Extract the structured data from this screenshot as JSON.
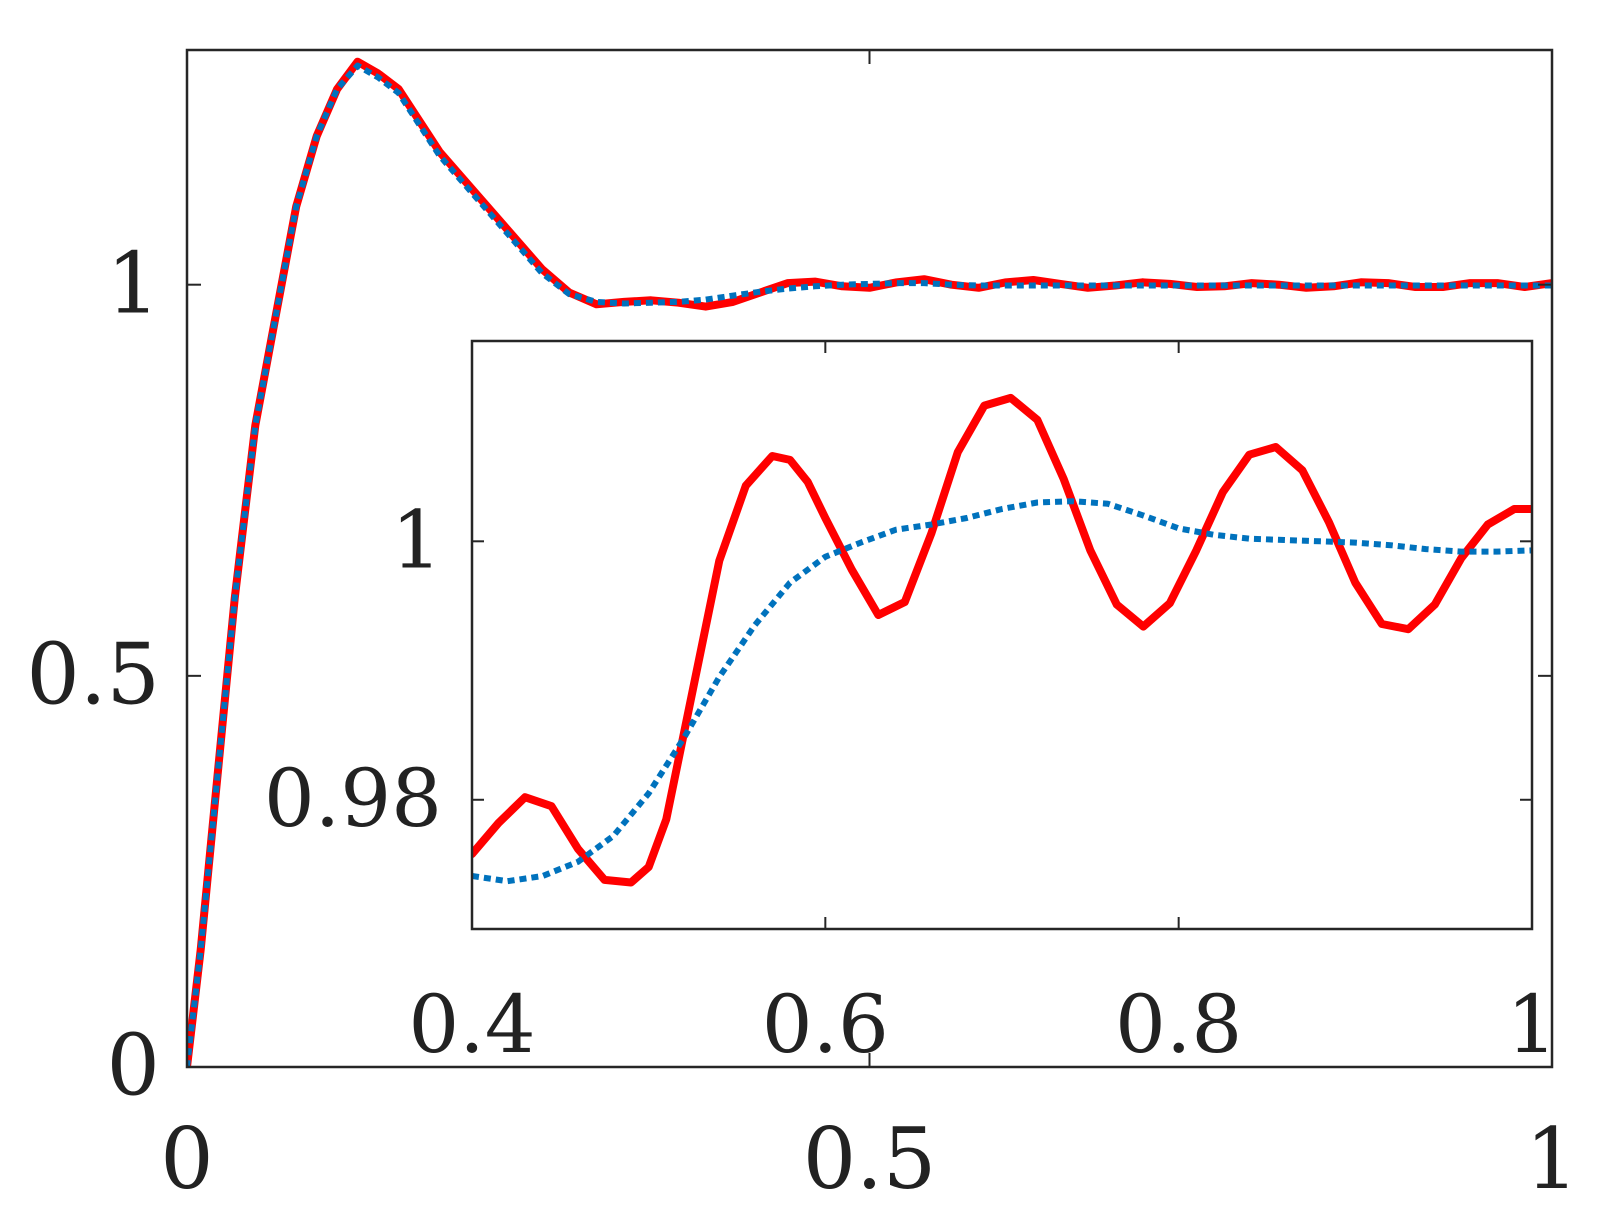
{
  "colors": {
    "series_red": "#ff0000",
    "series_blue": "#0072bd",
    "axes": "#262626",
    "background": "#ffffff"
  },
  "chart_data": [
    {
      "type": "line",
      "role": "main",
      "xlim": [
        0,
        1
      ],
      "ylim": [
        0,
        1.3
      ],
      "grid": false,
      "legend": "none",
      "xticks": [
        0,
        0.5,
        1
      ],
      "xtick_labels": [
        "0",
        "0.5",
        "1"
      ],
      "yticks": [
        0,
        0.5,
        1
      ],
      "ytick_labels": [
        "0",
        "0.5",
        "1"
      ],
      "series": [
        {
          "color": "#ff0000",
          "style": "solid",
          "x": [
            0,
            0.01,
            0.02,
            0.035,
            0.05,
            0.065,
            0.08,
            0.095,
            0.11,
            0.125,
            0.14,
            0.155,
            0.17,
            0.185,
            0.2,
            0.22,
            0.24,
            0.26,
            0.28,
            0.3,
            0.32,
            0.34,
            0.36,
            0.38,
            0.4,
            0.42,
            0.44,
            0.46,
            0.48,
            0.5,
            0.52,
            0.54,
            0.56,
            0.58,
            0.6,
            0.62,
            0.64,
            0.66,
            0.68,
            0.7,
            0.72,
            0.74,
            0.76,
            0.78,
            0.8,
            0.82,
            0.84,
            0.86,
            0.88,
            0.9,
            0.92,
            0.94,
            0.96,
            0.98,
            1.0
          ],
          "y": [
            0,
            0.15,
            0.33,
            0.6,
            0.82,
            0.96,
            1.1,
            1.19,
            1.25,
            1.285,
            1.27,
            1.25,
            1.21,
            1.17,
            1.14,
            1.1,
            1.06,
            1.02,
            0.99,
            0.975,
            0.978,
            0.98,
            0.977,
            0.972,
            0.978,
            0.99,
            1.002,
            1.004,
            0.998,
            0.996,
            1.003,
            1.007,
            1.0,
            0.996,
            1.003,
            1.006,
            1.001,
            0.996,
            0.999,
            1.003,
            1.001,
            0.997,
            0.998,
            1.002,
            1.0,
            0.996,
            0.998,
            1.003,
            1.002,
            0.997,
            0.997,
            1.002,
            1.002,
            0.997,
            1.002
          ]
        },
        {
          "color": "#0072bd",
          "style": "dotted",
          "x": [
            0,
            0.01,
            0.02,
            0.035,
            0.05,
            0.065,
            0.08,
            0.095,
            0.11,
            0.125,
            0.14,
            0.155,
            0.17,
            0.185,
            0.2,
            0.22,
            0.24,
            0.26,
            0.28,
            0.3,
            0.32,
            0.34,
            0.36,
            0.38,
            0.4,
            0.42,
            0.44,
            0.46,
            0.48,
            0.5,
            0.52,
            0.54,
            0.56,
            0.58,
            0.6,
            0.62,
            0.64,
            0.66,
            0.68,
            0.7,
            0.72,
            0.74,
            0.76,
            0.78,
            0.8,
            0.82,
            0.84,
            0.86,
            0.88,
            0.9,
            0.92,
            0.94,
            0.96,
            0.98,
            1.0
          ],
          "y": [
            0,
            0.15,
            0.33,
            0.6,
            0.82,
            0.96,
            1.1,
            1.19,
            1.25,
            1.28,
            1.265,
            1.245,
            1.205,
            1.165,
            1.135,
            1.095,
            1.055,
            1.015,
            0.988,
            0.978,
            0.976,
            0.977,
            0.978,
            0.981,
            0.986,
            0.991,
            0.995,
            0.998,
            1.0,
            1.001,
            1.002,
            1.002,
            1.0,
            0.999,
            0.999,
            0.999,
            0.999,
            0.999,
            0.999,
            0.999,
            0.999,
            0.999,
            0.999,
            0.999,
            0.999,
            0.999,
            0.999,
            0.999,
            0.999,
            0.999,
            0.999,
            0.999,
            0.999,
            0.999,
            0.999
          ]
        }
      ]
    },
    {
      "type": "line",
      "role": "inset",
      "xlim": [
        0.4,
        1
      ],
      "ylim": [
        0.97,
        1.0155
      ],
      "grid": false,
      "legend": "none",
      "xticks": [
        0.4,
        0.6,
        0.8,
        1
      ],
      "xtick_labels": [
        "0.4",
        "0.6",
        "0.8",
        "1"
      ],
      "yticks": [
        0.98,
        1
      ],
      "ytick_labels": [
        "0.98",
        "1"
      ],
      "series": [
        {
          "color": "#ff0000",
          "style": "solid",
          "x": [
            0.4,
            0.415,
            0.43,
            0.445,
            0.46,
            0.475,
            0.49,
            0.5,
            0.51,
            0.525,
            0.54,
            0.555,
            0.57,
            0.58,
            0.59,
            0.6,
            0.615,
            0.63,
            0.645,
            0.66,
            0.675,
            0.69,
            0.705,
            0.72,
            0.735,
            0.75,
            0.765,
            0.78,
            0.795,
            0.81,
            0.825,
            0.84,
            0.855,
            0.87,
            0.885,
            0.9,
            0.915,
            0.93,
            0.945,
            0.96,
            0.975,
            0.99,
            1.0
          ],
          "y": [
            0.9758,
            0.9782,
            0.9802,
            0.9795,
            0.9762,
            0.9738,
            0.9736,
            0.9748,
            0.9785,
            0.9885,
            0.9985,
            1.0043,
            1.0066,
            1.0063,
            1.0046,
            1.0018,
            0.9978,
            0.9943,
            0.9953,
            1.0006,
            1.0069,
            1.0105,
            1.0111,
            1.0094,
            1.0048,
            0.9993,
            0.9951,
            0.9934,
            0.9952,
            0.9993,
            1.0038,
            1.0067,
            1.0073,
            1.0055,
            1.0015,
            0.9968,
            0.9936,
            0.9932,
            0.9951,
            0.9987,
            1.0013,
            1.0025,
            1.0025
          ]
        },
        {
          "color": "#0072bd",
          "style": "dotted",
          "x": [
            0.4,
            0.42,
            0.44,
            0.46,
            0.48,
            0.5,
            0.52,
            0.54,
            0.56,
            0.58,
            0.6,
            0.62,
            0.64,
            0.66,
            0.68,
            0.7,
            0.72,
            0.74,
            0.76,
            0.78,
            0.8,
            0.82,
            0.84,
            0.86,
            0.88,
            0.9,
            0.92,
            0.94,
            0.96,
            0.98,
            1.0
          ],
          "y": [
            0.9741,
            0.9737,
            0.9741,
            0.9752,
            0.9772,
            0.9805,
            0.9848,
            0.9895,
            0.9935,
            0.9968,
            0.9988,
            0.9999,
            1.0009,
            1.0013,
            1.0018,
            1.0025,
            1.003,
            1.0031,
            1.0029,
            1.002,
            1.001,
            1.0005,
            1.0002,
            1.0001,
            1.0,
            0.9999,
            0.9997,
            0.9994,
            0.9992,
            0.9992,
            0.9993
          ]
        }
      ]
    }
  ]
}
